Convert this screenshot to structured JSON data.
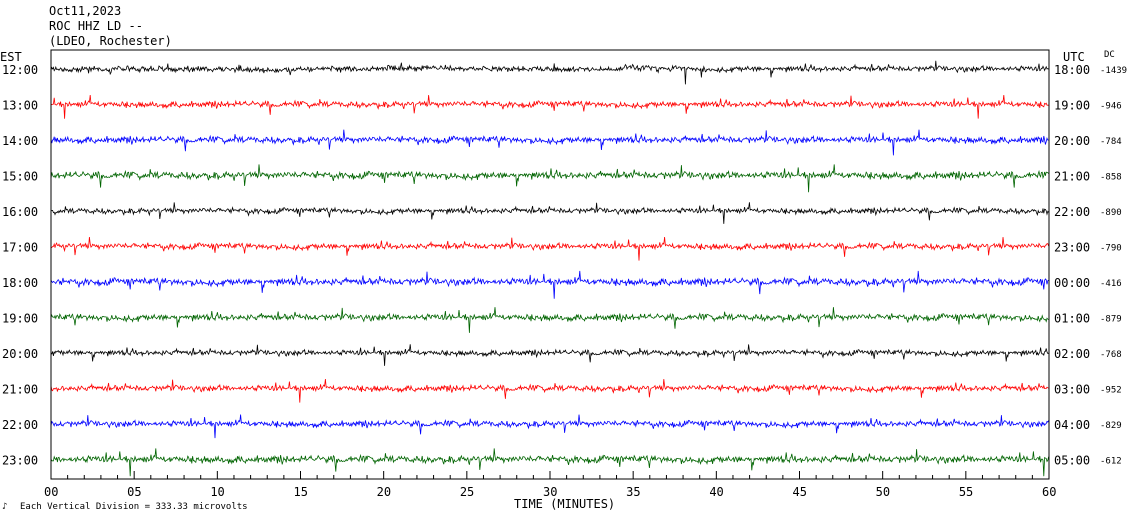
{
  "header": {
    "line1": "Oct11,2023",
    "line2": "ROC HHZ LD --",
    "line3": "(LDEO, Rochester)"
  },
  "left_axis_title": "EST",
  "right_axis_title": "UTC",
  "dc_title": "DC",
  "xlabel": "TIME (MINUTES)",
  "footer_note": "Each Vertical Division =  333.33 microvolts",
  "colors": {
    "black": "#000000",
    "red": "#ff0000",
    "blue": "#0000ff",
    "green": "#006400"
  },
  "chart_data": {
    "type": "line",
    "x_range_minutes": [
      0,
      60
    ],
    "x_ticks": [
      "00",
      "05",
      "10",
      "15",
      "20",
      "25",
      "30",
      "35",
      "40",
      "45",
      "50",
      "55",
      "60"
    ],
    "x_tick_values": [
      0,
      5,
      10,
      15,
      20,
      25,
      30,
      35,
      40,
      45,
      50,
      55,
      60
    ],
    "grid": false,
    "rows": [
      {
        "est": "12:00",
        "utc": "18:00",
        "dc": "-1439",
        "color": "black",
        "amplitude": 1.0
      },
      {
        "est": "13:00",
        "utc": "19:00",
        "dc": "-946",
        "color": "red",
        "amplitude": 1.1
      },
      {
        "est": "14:00",
        "utc": "20:00",
        "dc": "-784",
        "color": "blue",
        "amplitude": 1.2
      },
      {
        "est": "15:00",
        "utc": "21:00",
        "dc": "-858",
        "color": "green",
        "amplitude": 1.3
      },
      {
        "est": "16:00",
        "utc": "22:00",
        "dc": "-890",
        "color": "black",
        "amplitude": 1.0
      },
      {
        "est": "17:00",
        "utc": "23:00",
        "dc": "-790",
        "color": "red",
        "amplitude": 1.1
      },
      {
        "est": "18:00",
        "utc": "00:00",
        "dc": "-416",
        "color": "blue",
        "amplitude": 1.3
      },
      {
        "est": "19:00",
        "utc": "01:00",
        "dc": "-879",
        "color": "green",
        "amplitude": 1.2
      },
      {
        "est": "20:00",
        "utc": "02:00",
        "dc": "-768",
        "color": "black",
        "amplitude": 1.0
      },
      {
        "est": "21:00",
        "utc": "03:00",
        "dc": "-952",
        "color": "red",
        "amplitude": 1.1
      },
      {
        "est": "22:00",
        "utc": "04:00",
        "dc": "-829",
        "color": "blue",
        "amplitude": 1.1
      },
      {
        "est": "23:00",
        "utc": "05:00",
        "dc": "-612",
        "color": "green",
        "amplitude": 1.3
      }
    ]
  }
}
